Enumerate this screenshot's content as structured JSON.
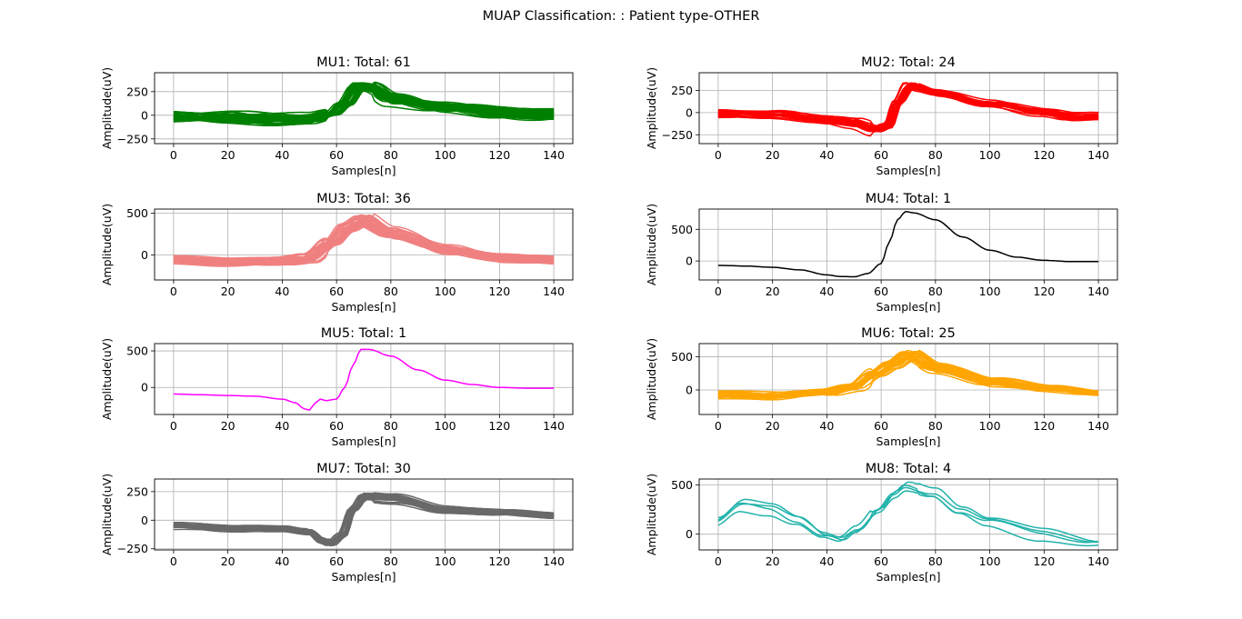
{
  "figure": {
    "suptitle": "MUAP Classification: : Patient type-OTHER"
  },
  "chart_data": [
    {
      "type": "line",
      "title": "MU1: Total: 61",
      "xlabel": "Samples[n]",
      "ylabel": "Amplitude(uV)",
      "xlim": [
        -7,
        147
      ],
      "ylim": [
        -300,
        450
      ],
      "xticks": [
        0,
        20,
        40,
        60,
        80,
        100,
        120,
        140
      ],
      "yticks": [
        -250,
        0,
        250
      ],
      "grid": true,
      "color": "#008000",
      "count": 61,
      "template": [
        [
          0,
          -20
        ],
        [
          20,
          -25
        ],
        [
          40,
          -45
        ],
        [
          50,
          -40
        ],
        [
          58,
          10
        ],
        [
          63,
          120
        ],
        [
          68,
          300
        ],
        [
          72,
          300
        ],
        [
          80,
          180
        ],
        [
          100,
          80
        ],
        [
          120,
          30
        ],
        [
          140,
          10
        ]
      ],
      "spread": 90,
      "peak_jitter": 3
    },
    {
      "type": "line",
      "title": "MU2: Total: 24",
      "xlabel": "Samples[n]",
      "ylabel": "Amplitude(uV)",
      "xlim": [
        -7,
        147
      ],
      "ylim": [
        -350,
        450
      ],
      "xticks": [
        0,
        20,
        40,
        60,
        80,
        100,
        120,
        140
      ],
      "yticks": [
        -250,
        0,
        250
      ],
      "grid": true,
      "color": "#ff0000",
      "count": 24,
      "template": [
        [
          0,
          -10
        ],
        [
          20,
          -20
        ],
        [
          40,
          -80
        ],
        [
          50,
          -120
        ],
        [
          58,
          -190
        ],
        [
          62,
          -150
        ],
        [
          66,
          120
        ],
        [
          70,
          300
        ],
        [
          80,
          220
        ],
        [
          100,
          100
        ],
        [
          120,
          0
        ],
        [
          130,
          -50
        ],
        [
          140,
          -40
        ]
      ],
      "spread": 55,
      "peak_jitter": 2
    },
    {
      "type": "line",
      "title": "MU3: Total: 36",
      "xlabel": "Samples[n]",
      "ylabel": "Amplitude(uV)",
      "xlim": [
        -7,
        147
      ],
      "ylim": [
        -300,
        550
      ],
      "xticks": [
        0,
        20,
        40,
        60,
        80,
        100,
        120,
        140
      ],
      "yticks": [
        0,
        500
      ],
      "grid": true,
      "color": "#f08080",
      "count": 36,
      "template": [
        [
          0,
          -60
        ],
        [
          20,
          -90
        ],
        [
          40,
          -80
        ],
        [
          50,
          -40
        ],
        [
          58,
          150
        ],
        [
          64,
          330
        ],
        [
          70,
          420
        ],
        [
          80,
          260
        ],
        [
          100,
          60
        ],
        [
          120,
          -40
        ],
        [
          140,
          -60
        ]
      ],
      "spread": 70,
      "peak_jitter": 3
    },
    {
      "type": "line",
      "title": "MU4: Total: 1",
      "xlabel": "Samples[n]",
      "ylabel": "Amplitude(uV)",
      "xlim": [
        -7,
        147
      ],
      "ylim": [
        -300,
        820
      ],
      "xticks": [
        0,
        20,
        40,
        60,
        80,
        100,
        120,
        140
      ],
      "yticks": [
        0,
        500
      ],
      "grid": true,
      "color": "#000000",
      "count": 1,
      "template": [
        [
          0,
          -70
        ],
        [
          10,
          -80
        ],
        [
          20,
          -100
        ],
        [
          30,
          -140
        ],
        [
          40,
          -220
        ],
        [
          45,
          -245
        ],
        [
          50,
          -250
        ],
        [
          55,
          -200
        ],
        [
          60,
          -40
        ],
        [
          63,
          300
        ],
        [
          66,
          650
        ],
        [
          69,
          780
        ],
        [
          72,
          760
        ],
        [
          80,
          650
        ],
        [
          90,
          380
        ],
        [
          100,
          170
        ],
        [
          110,
          60
        ],
        [
          120,
          10
        ],
        [
          130,
          -10
        ],
        [
          140,
          -10
        ]
      ],
      "spread": 0,
      "peak_jitter": 0
    },
    {
      "type": "line",
      "title": "MU5: Total: 1",
      "xlabel": "Samples[n]",
      "ylabel": "Amplitude(uV)",
      "xlim": [
        -7,
        147
      ],
      "ylim": [
        -370,
        600
      ],
      "xticks": [
        0,
        20,
        40,
        60,
        80,
        100,
        120,
        140
      ],
      "yticks": [
        0,
        500
      ],
      "grid": true,
      "color": "#ff00ff",
      "count": 1,
      "template": [
        [
          0,
          -90
        ],
        [
          10,
          -100
        ],
        [
          20,
          -110
        ],
        [
          30,
          -120
        ],
        [
          40,
          -160
        ],
        [
          45,
          -210
        ],
        [
          48,
          -290
        ],
        [
          50,
          -310
        ],
        [
          52,
          -220
        ],
        [
          54,
          -160
        ],
        [
          56,
          -180
        ],
        [
          60,
          -160
        ],
        [
          63,
          0
        ],
        [
          66,
          300
        ],
        [
          69,
          520
        ],
        [
          72,
          520
        ],
        [
          80,
          430
        ],
        [
          90,
          240
        ],
        [
          100,
          100
        ],
        [
          110,
          40
        ],
        [
          120,
          0
        ],
        [
          130,
          -10
        ],
        [
          140,
          -10
        ]
      ],
      "spread": 0,
      "peak_jitter": 0
    },
    {
      "type": "line",
      "title": "MU6: Total: 25",
      "xlabel": "Samples[n]",
      "ylabel": "Amplitude(uV)",
      "xlim": [
        -7,
        147
      ],
      "ylim": [
        -370,
        700
      ],
      "xticks": [
        0,
        20,
        40,
        60,
        80,
        100,
        120,
        140
      ],
      "yticks": [
        0,
        500
      ],
      "grid": true,
      "color": "#ffa500",
      "count": 25,
      "template": [
        [
          0,
          -80
        ],
        [
          20,
          -90
        ],
        [
          40,
          -40
        ],
        [
          50,
          50
        ],
        [
          58,
          250
        ],
        [
          64,
          380
        ],
        [
          70,
          520
        ],
        [
          80,
          330
        ],
        [
          100,
          120
        ],
        [
          120,
          20
        ],
        [
          140,
          -40
        ]
      ],
      "spread": 75,
      "peak_jitter": 3
    },
    {
      "type": "line",
      "title": "MU7: Total: 30",
      "xlabel": "Samples[n]",
      "ylabel": "Amplitude(uV)",
      "xlim": [
        -7,
        147
      ],
      "ylim": [
        -260,
        360
      ],
      "xticks": [
        0,
        20,
        40,
        60,
        80,
        100,
        120,
        140
      ],
      "yticks": [
        -250,
        0,
        250
      ],
      "grid": true,
      "color": "#696969",
      "count": 30,
      "template": [
        [
          0,
          -50
        ],
        [
          20,
          -70
        ],
        [
          40,
          -70
        ],
        [
          50,
          -100
        ],
        [
          55,
          -180
        ],
        [
          58,
          -200
        ],
        [
          62,
          -130
        ],
        [
          66,
          100
        ],
        [
          70,
          210
        ],
        [
          80,
          190
        ],
        [
          100,
          90
        ],
        [
          120,
          70
        ],
        [
          140,
          40
        ]
      ],
      "spread": 35,
      "peak_jitter": 1.5
    },
    {
      "type": "line",
      "title": "MU8: Total: 4",
      "xlabel": "Samples[n]",
      "ylabel": "Amplitude(uV)",
      "xlim": [
        -7,
        147
      ],
      "ylim": [
        -160,
        560
      ],
      "xticks": [
        0,
        20,
        40,
        60,
        80,
        100,
        120,
        140
      ],
      "yticks": [
        0,
        500
      ],
      "grid": true,
      "color": "#20b2aa",
      "count": 4,
      "template": [
        [
          0,
          100
        ],
        [
          10,
          280
        ],
        [
          20,
          250
        ],
        [
          30,
          140
        ],
        [
          40,
          -20
        ],
        [
          46,
          -60
        ],
        [
          52,
          40
        ],
        [
          60,
          250
        ],
        [
          66,
          420
        ],
        [
          70,
          500
        ],
        [
          80,
          420
        ],
        [
          90,
          220
        ],
        [
          100,
          100
        ],
        [
          120,
          0
        ],
        [
          140,
          -100
        ]
      ],
      "spread": 90,
      "peak_jitter": 2
    }
  ]
}
